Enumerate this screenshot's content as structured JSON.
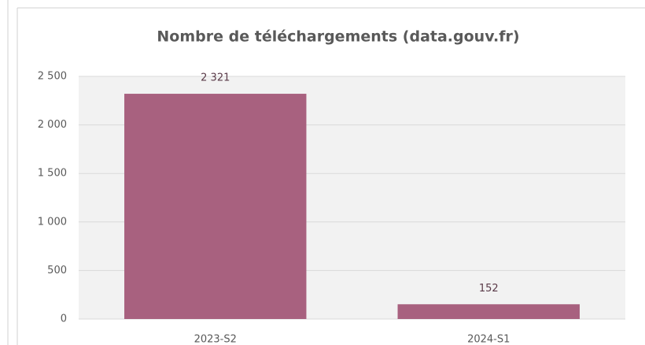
{
  "chart_data": {
    "type": "bar",
    "title": "Nombre de téléchargements (data.gouv.fr)",
    "categories": [
      "2023-S2",
      "2024-S1"
    ],
    "values": [
      2321,
      152
    ],
    "value_labels": [
      "2 321",
      "152"
    ],
    "color": "#a8617f",
    "ylim": [
      0,
      2500
    ],
    "yticks": [
      0,
      500,
      {
        "value": 1000,
        "label": "1 000"
      },
      {
        "value": 1500,
        "label": "1 500"
      },
      {
        "value": 2000,
        "label": "2 000"
      },
      {
        "value": 2500,
        "label": "2 500"
      }
    ],
    "grid": true
  }
}
